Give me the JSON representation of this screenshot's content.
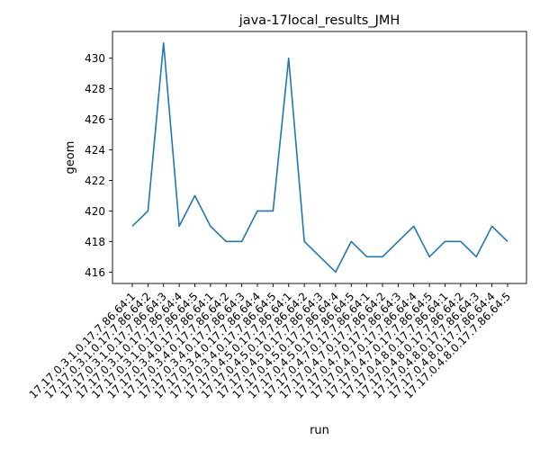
{
  "chart_data": {
    "type": "line",
    "title": "java-17local_results_JMH",
    "xlabel": "run",
    "ylabel": "geom",
    "categories": [
      "17.17.0.3.1.0.17.7.86.64:1",
      "17.17.0.3.1.0.17.7.86.64:2",
      "17.17.0.3.1.0.17.7.86.64:3",
      "17.17.0.3.1.0.17.7.86.64:4",
      "17.17.0.3.1.0.17.7.86.64:5",
      "17.17.0.3.4.0.17.7.86.64:1",
      "17.17.0.3.4.0.17.7.86.64:2",
      "17.17.0.3.4.0.17.7.86.64:3",
      "17.17.0.3.4.0.17.7.86.64:4",
      "17.17.0.3.4.0.17.7.86.64:5",
      "17.17.0.4.5.0.17.7.86.64:1",
      "17.17.0.4.5.0.17.7.86.64:2",
      "17.17.0.4.5.0.17.7.86.64:3",
      "17.17.0.4.5.0.17.7.86.64:4",
      "17.17.0.4.5.0.17.7.86.64:5",
      "17.17.0.4.7.0.17.7.86.64:1",
      "17.17.0.4.7.0.17.7.86.64:2",
      "17.17.0.4.7.0.17.7.86.64:3",
      "17.17.0.4.7.0.17.7.86.64:4",
      "17.17.0.4.7.0.17.7.86.64:5",
      "17.17.0.4.8.0.17.7.86.64:1",
      "17.17.0.4.8.0.17.7.86.64:2",
      "17.17.0.4.8.0.17.7.86.64:3",
      "17.17.0.4.8.0.17.7.86.64:4",
      "17.17.0.4.8.0.17.7.86.64:5"
    ],
    "series": [
      {
        "values": [
          419,
          420,
          431,
          419,
          421,
          419,
          418,
          418,
          420,
          420,
          430,
          418,
          417,
          416,
          418,
          417,
          417,
          418,
          419,
          417,
          418,
          418,
          417,
          419,
          418
        ]
      }
    ],
    "yticks": [
      416,
      418,
      420,
      422,
      424,
      426,
      428,
      430
    ],
    "ylim": [
      415.25,
      431.75
    ],
    "grid": false,
    "legend": "none",
    "line_color": "#1f77b4"
  }
}
